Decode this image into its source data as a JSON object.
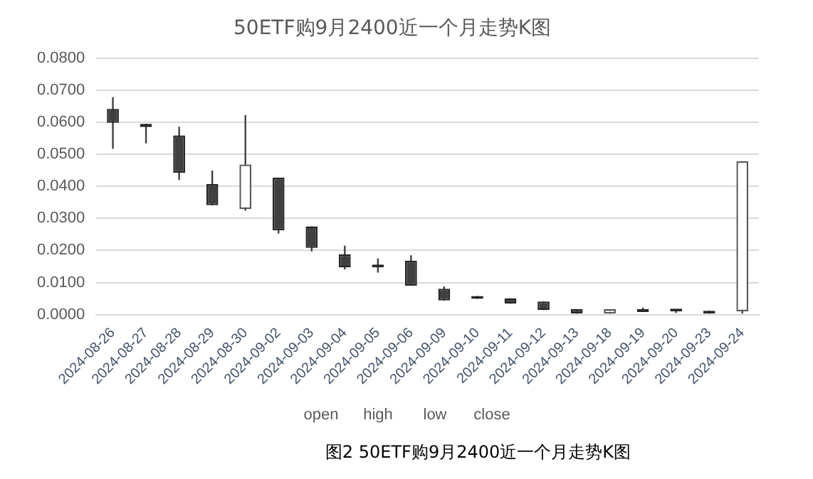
{
  "chart_data": {
    "type": "candlestick",
    "title": "50ETF购9月2400近一个月走势K图",
    "categories": [
      "2024-08-26",
      "2024-08-27",
      "2024-08-28",
      "2024-08-29",
      "2024-08-30",
      "2024-09-02",
      "2024-09-03",
      "2024-09-04",
      "2024-09-05",
      "2024-09-06",
      "2024-09-09",
      "2024-09-10",
      "2024-09-11",
      "2024-09-12",
      "2024-09-13",
      "2024-09-18",
      "2024-09-19",
      "2024-09-20",
      "2024-09-23",
      "2024-09-24"
    ],
    "ohlc": [
      [
        0.0641,
        0.0678,
        0.0517,
        0.0598
      ],
      [
        0.0595,
        0.0595,
        0.0534,
        0.0585
      ],
      [
        0.0559,
        0.0586,
        0.042,
        0.0442
      ],
      [
        0.0407,
        0.0449,
        0.0341,
        0.0341
      ],
      [
        0.0329,
        0.0622,
        0.0324,
        0.0468
      ],
      [
        0.0427,
        0.0427,
        0.0253,
        0.0263
      ],
      [
        0.0275,
        0.0275,
        0.0197,
        0.0208
      ],
      [
        0.0188,
        0.0215,
        0.0141,
        0.0147
      ],
      [
        0.0156,
        0.0175,
        0.0131,
        0.0147
      ],
      [
        0.0168,
        0.0185,
        0.009,
        0.009
      ],
      [
        0.0081,
        0.0088,
        0.0044,
        0.0044
      ],
      [
        0.0056,
        0.0058,
        0.0049,
        0.0049
      ],
      [
        0.0051,
        0.0051,
        0.0034,
        0.0034
      ],
      [
        0.0041,
        0.0041,
        0.0014,
        0.0014
      ],
      [
        0.0017,
        0.0017,
        0.0003,
        0.0003
      ],
      [
        0.0003,
        0.0017,
        0.0003,
        0.0017
      ],
      [
        0.0017,
        0.0022,
        0.0008,
        0.0008
      ],
      [
        0.0014,
        0.0014,
        0.0005,
        0.001
      ],
      [
        0.0007,
        0.0012,
        0.0003,
        0.0003
      ],
      [
        0.001,
        0.0478,
        0.0003,
        0.0478
      ]
    ],
    "ylim": [
      0,
      0.08
    ],
    "yticks": [
      {
        "value": 0,
        "label": "0.0000"
      },
      {
        "value": 0.01,
        "label": "0.0100"
      },
      {
        "value": 0.02,
        "label": "0.0200"
      },
      {
        "value": 0.03,
        "label": "0.0300"
      },
      {
        "value": 0.04,
        "label": "0.0400"
      },
      {
        "value": 0.05,
        "label": "0.0500"
      },
      {
        "value": 0.06,
        "label": "0.0600"
      },
      {
        "value": 0.07,
        "label": "0.0700"
      },
      {
        "value": 0.08,
        "label": "0.0800"
      }
    ],
    "grid": "y",
    "annotations": [
      "open",
      "high",
      "low",
      "close",
      "图2 50ETF购9月2400近一个月走势K图"
    ]
  }
}
